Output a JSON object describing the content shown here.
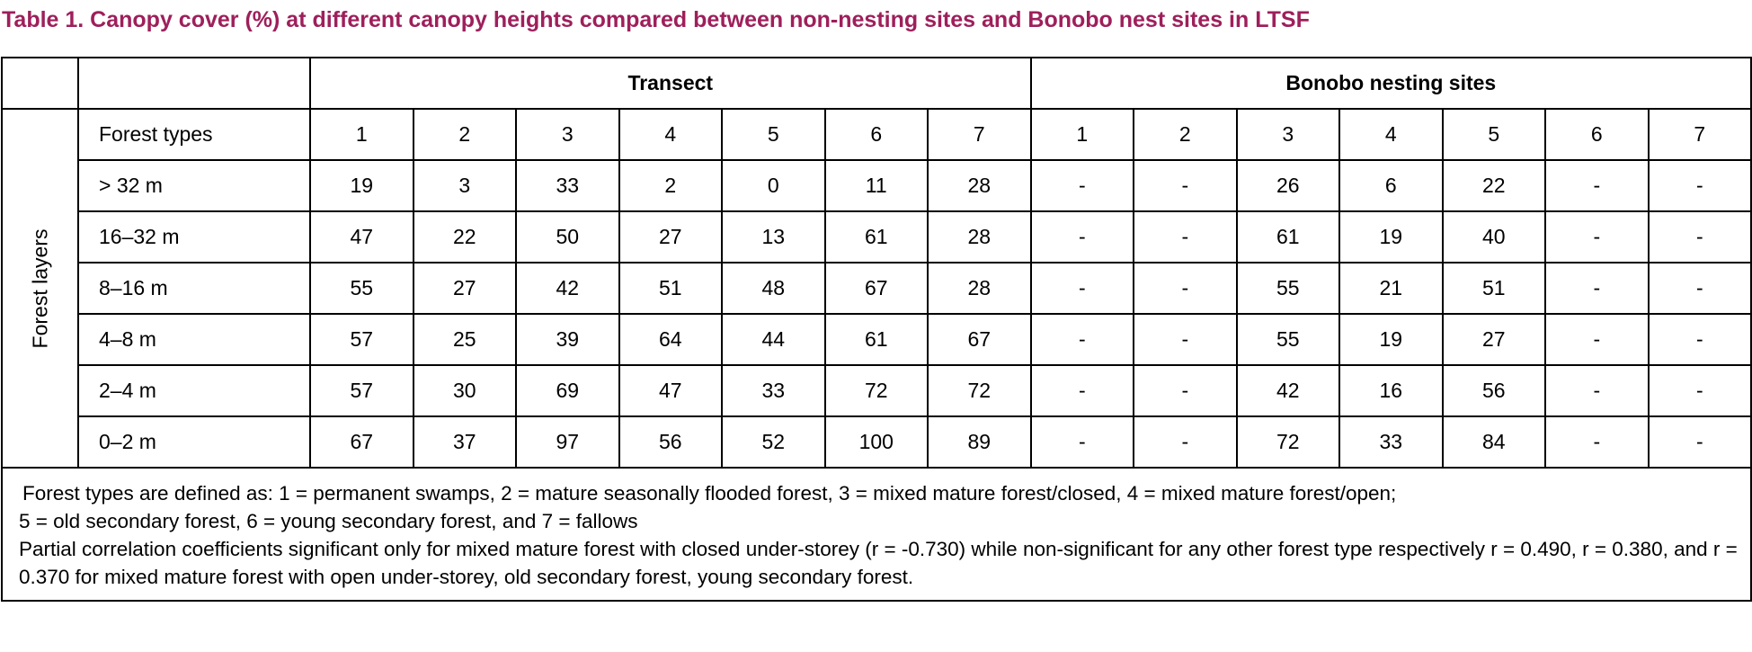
{
  "title": "Table 1. Canopy cover (%) at different canopy heights compared between non-nesting sites and Bonobo nest sites in LTSF",
  "table": {
    "group_headers": [
      "Transect",
      "Bonobo nesting sites"
    ],
    "row_group_label": "Forest layers",
    "forest_types_label": "Forest types",
    "forest_types": [
      "1",
      "2",
      "3",
      "4",
      "5",
      "6",
      "7",
      "1",
      "2",
      "3",
      "4",
      "5",
      "6",
      "7"
    ],
    "rows": [
      {
        "label": "> 32 m",
        "cells": [
          "19",
          "3",
          "33",
          "2",
          "0",
          "11",
          "28",
          "-",
          "-",
          "26",
          "6",
          "22",
          "-",
          "-"
        ]
      },
      {
        "label": "16–32 m",
        "cells": [
          "47",
          "22",
          "50",
          "27",
          "13",
          "61",
          "28",
          "-",
          "-",
          "61",
          "19",
          "40",
          "-",
          "-"
        ]
      },
      {
        "label": "8–16 m",
        "cells": [
          "55",
          "27",
          "42",
          "51",
          "48",
          "67",
          "28",
          "-",
          "-",
          "55",
          "21",
          "51",
          "-",
          "-"
        ]
      },
      {
        "label": "4–8 m",
        "cells": [
          "57",
          "25",
          "39",
          "64",
          "44",
          "61",
          "67",
          "-",
          "-",
          "55",
          "19",
          "27",
          "-",
          "-"
        ]
      },
      {
        "label": "2–4 m",
        "cells": [
          "57",
          "30",
          "69",
          "47",
          "33",
          "72",
          "72",
          "-",
          "-",
          "42",
          "16",
          "56",
          "-",
          "-"
        ]
      },
      {
        "label": "0–2 m",
        "cells": [
          "67",
          "37",
          "97",
          "56",
          "52",
          "100",
          "89",
          "-",
          "-",
          "72",
          "33",
          "84",
          "-",
          "-"
        ]
      }
    ],
    "footnotes": [
      "Forest types are defined as: 1 = permanent swamps, 2 = mature seasonally flooded forest, 3 = mixed mature forest/closed, 4 = mixed mature forest/open;",
      "5 = old secondary forest, 6 = young secondary forest, and 7 = fallows",
      "Partial correlation coefficients significant only for mixed mature forest with closed under-storey (r = -0.730) while non-significant for any other forest type respectively r = 0.490, r = 0.380, and r = 0.370 for mixed mature forest with open under-storey, old secondary forest, young secondary forest."
    ]
  }
}
